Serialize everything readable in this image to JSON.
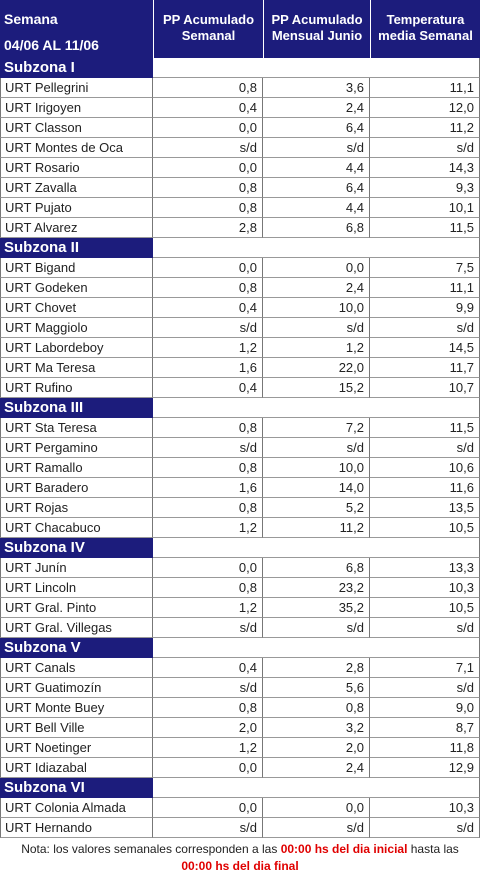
{
  "header": {
    "week_label": "Semana",
    "date_range": "04/06 AL 11/06",
    "columns": [
      [
        "PP Acumulado",
        "Semanal"
      ],
      [
        "PP Acumulado",
        "Mensual Junio"
      ],
      [
        "Temperatura",
        "media Semanal"
      ]
    ]
  },
  "subzones": [
    {
      "name": "Subzona I",
      "rows": [
        [
          "URT Pellegrini",
          "0,8",
          "3,6",
          "11,1"
        ],
        [
          "URT Irigoyen",
          "0,4",
          "2,4",
          "12,0"
        ],
        [
          "URT Classon",
          "0,0",
          "6,4",
          "11,2"
        ],
        [
          "URT Montes de Oca",
          "s/d",
          "s/d",
          "s/d"
        ],
        [
          "URT Rosario",
          "0,0",
          "4,4",
          "14,3"
        ],
        [
          "URT Zavalla",
          "0,8",
          "6,4",
          "9,3"
        ],
        [
          "URT Pujato",
          "0,8",
          "4,4",
          "10,1"
        ],
        [
          "URT Alvarez",
          "2,8",
          "6,8",
          "11,5"
        ]
      ]
    },
    {
      "name": "Subzona II",
      "rows": [
        [
          "URT Bigand",
          "0,0",
          "0,0",
          "7,5"
        ],
        [
          "URT Godeken",
          "0,8",
          "2,4",
          "11,1"
        ],
        [
          "URT Chovet",
          "0,4",
          "10,0",
          "9,9"
        ],
        [
          "URT Maggiolo",
          "s/d",
          "s/d",
          "s/d"
        ],
        [
          "URT Labordeboy",
          "1,2",
          "1,2",
          "14,5"
        ],
        [
          "URT Ma Teresa",
          "1,6",
          "22,0",
          "11,7"
        ],
        [
          "URT Rufino",
          "0,4",
          "15,2",
          "10,7"
        ]
      ]
    },
    {
      "name": "Subzona III",
      "rows": [
        [
          "URT Sta Teresa",
          "0,8",
          "7,2",
          "11,5"
        ],
        [
          "URT Pergamino",
          "s/d",
          "s/d",
          "s/d"
        ],
        [
          "URT Ramallo",
          "0,8",
          "10,0",
          "10,6"
        ],
        [
          "URT Baradero",
          "1,6",
          "14,0",
          "11,6"
        ],
        [
          "URT Rojas",
          "0,8",
          "5,2",
          "13,5"
        ],
        [
          "URT Chacabuco",
          "1,2",
          "11,2",
          "10,5"
        ]
      ]
    },
    {
      "name": "Subzona IV",
      "rows": [
        [
          "URT Junín",
          "0,0",
          "6,8",
          "13,3"
        ],
        [
          "URT Lincoln",
          "0,8",
          "23,2",
          "10,3"
        ],
        [
          "URT Gral. Pinto",
          "1,2",
          "35,2",
          "10,5"
        ],
        [
          "URT Gral. Villegas",
          "s/d",
          "s/d",
          "s/d"
        ]
      ]
    },
    {
      "name": "Subzona V",
      "rows": [
        [
          "URT Canals",
          "0,4",
          "2,8",
          "7,1"
        ],
        [
          "URT Guatimozín",
          "s/d",
          "5,6",
          "s/d"
        ],
        [
          "URT Monte Buey",
          "0,8",
          "0,8",
          "9,0"
        ],
        [
          "URT Bell Ville",
          "2,0",
          "3,2",
          "8,7"
        ],
        [
          "URT Noetinger",
          "1,2",
          "2,0",
          "11,8"
        ],
        [
          "URT Idiazabal",
          "0,0",
          "2,4",
          "12,9"
        ]
      ]
    },
    {
      "name": "Subzona VI",
      "rows": [
        [
          "URT Colonia Almada",
          "0,0",
          "0,0",
          "10,3"
        ],
        [
          "URT Hernando",
          "s/d",
          "s/d",
          "s/d"
        ]
      ]
    }
  ],
  "note": {
    "parts": [
      "Nota: los valores semanales corresponden a las ",
      "00:00 hs del dia inicial",
      " hasta las ",
      "00:00 hs del dia final"
    ]
  }
}
